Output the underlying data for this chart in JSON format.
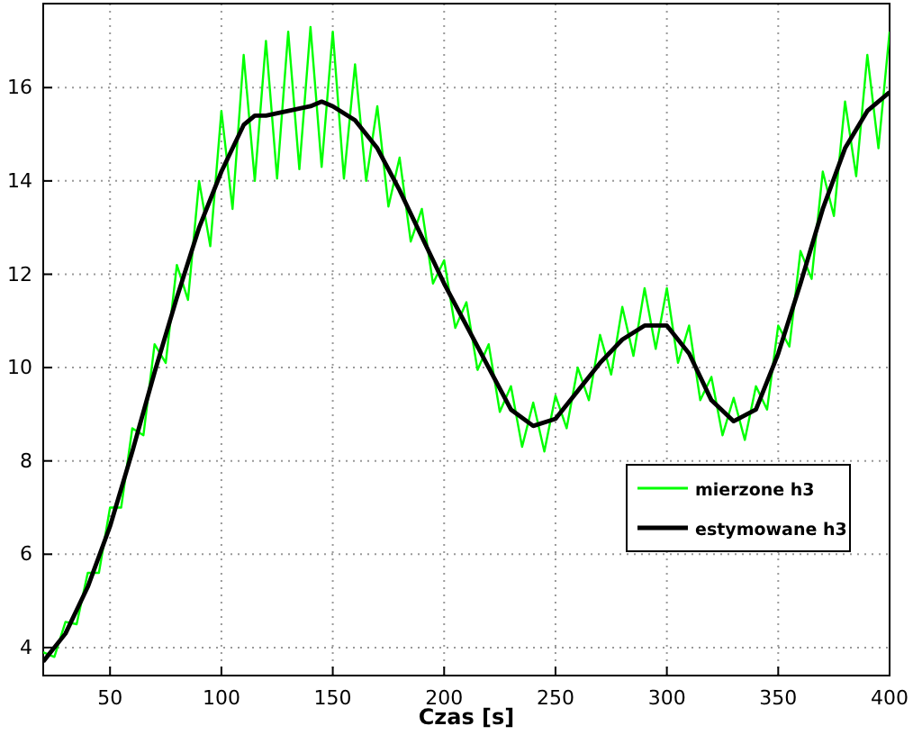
{
  "chart_data": {
    "type": "line",
    "xlabel": "Czas [s]",
    "xlim": [
      20,
      400
    ],
    "xticks": [
      50,
      100,
      150,
      200,
      250,
      300,
      350,
      400
    ],
    "ylim": [
      3.4,
      17.8
    ],
    "yticks": [
      4,
      6,
      8,
      10,
      12,
      14,
      16
    ],
    "grid": true,
    "legend": "right",
    "line_style": "solid",
    "marker": "none",
    "series": [
      {
        "name": "mierzone h3",
        "color": "#00ff00",
        "x": [
          20,
          25,
          30,
          35,
          40,
          45,
          50,
          55,
          60,
          65,
          70,
          75,
          80,
          85,
          90,
          95,
          100,
          105,
          110,
          115,
          120,
          125,
          130,
          135,
          140,
          145,
          150,
          155,
          160,
          165,
          170,
          175,
          180,
          185,
          190,
          195,
          200,
          205,
          210,
          215,
          220,
          225,
          230,
          235,
          240,
          245,
          250,
          255,
          260,
          265,
          270,
          275,
          280,
          285,
          290,
          295,
          300,
          305,
          310,
          315,
          320,
          325,
          330,
          335,
          340,
          345,
          350,
          355,
          360,
          365,
          370,
          375,
          380,
          385,
          390,
          395,
          400
        ],
        "values": [
          3.9,
          3.8,
          4.55,
          4.5,
          5.6,
          5.6,
          7.0,
          7.0,
          8.7,
          8.55,
          10.5,
          10.1,
          12.2,
          11.45,
          14.0,
          12.6,
          15.5,
          13.4,
          16.7,
          14.0,
          17.0,
          14.05,
          17.2,
          14.25,
          17.3,
          14.3,
          17.2,
          14.05,
          16.5,
          14.0,
          15.6,
          13.45,
          14.5,
          12.7,
          13.4,
          11.8,
          12.3,
          10.85,
          11.4,
          9.95,
          10.5,
          9.05,
          9.6,
          8.3,
          9.25,
          8.2,
          9.4,
          8.7,
          10.0,
          9.3,
          10.7,
          9.85,
          11.3,
          10.25,
          11.7,
          10.4,
          11.7,
          10.1,
          10.9,
          9.3,
          9.8,
          8.55,
          9.35,
          8.45,
          9.6,
          9.1,
          10.9,
          10.45,
          12.5,
          11.9,
          14.2,
          13.25,
          15.7,
          14.1,
          16.7,
          14.7,
          17.2
        ]
      },
      {
        "name": "estymowane h3",
        "color": "#000000",
        "x": [
          20,
          30,
          40,
          50,
          60,
          70,
          80,
          90,
          100,
          110,
          115,
          120,
          130,
          140,
          145,
          150,
          160,
          170,
          180,
          190,
          200,
          210,
          220,
          230,
          240,
          250,
          260,
          270,
          280,
          290,
          300,
          310,
          320,
          330,
          340,
          350,
          360,
          370,
          380,
          390,
          400
        ],
        "values": [
          3.7,
          4.3,
          5.3,
          6.6,
          8.2,
          9.9,
          11.5,
          13.0,
          14.2,
          15.2,
          15.4,
          15.4,
          15.5,
          15.6,
          15.7,
          15.6,
          15.3,
          14.7,
          13.8,
          12.8,
          11.8,
          10.9,
          10.0,
          9.1,
          8.75,
          8.9,
          9.5,
          10.1,
          10.6,
          10.9,
          10.9,
          10.3,
          9.3,
          8.85,
          9.1,
          10.3,
          11.8,
          13.4,
          14.7,
          15.5,
          15.9
        ]
      }
    ]
  }
}
